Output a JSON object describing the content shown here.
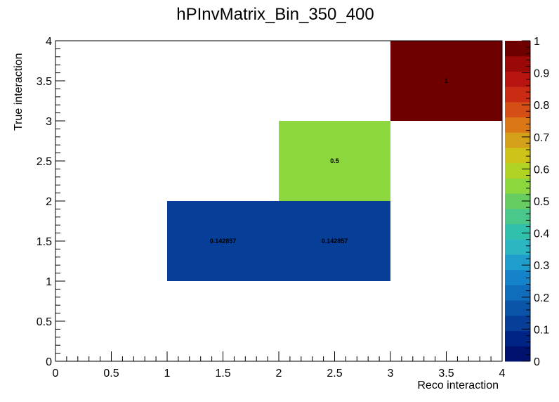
{
  "chart_data": {
    "type": "heatmap",
    "title": "hPInvMatrix_Bin_350_400",
    "xlabel": "Reco interaction",
    "ylabel": "True interaction",
    "xlim": [
      0,
      4
    ],
    "ylim": [
      0,
      4
    ],
    "zlim": [
      0,
      1
    ],
    "x_ticks": [
      "0",
      "0.5",
      "1",
      "1.5",
      "2",
      "2.5",
      "3",
      "3.5",
      "4"
    ],
    "y_ticks": [
      "0",
      "0.5",
      "1",
      "1.5",
      "2",
      "2.5",
      "3",
      "3.5",
      "4"
    ],
    "z_ticks": [
      "0",
      "0.1",
      "0.2",
      "0.3",
      "0.4",
      "0.5",
      "0.6",
      "0.7",
      "0.8",
      "0.9",
      "1"
    ],
    "x_bin_edges": [
      0,
      1,
      2,
      3,
      4
    ],
    "y_bin_edges": [
      1,
      2,
      3,
      4
    ],
    "cells": [
      {
        "x_bin": [
          1,
          2
        ],
        "y_bin": [
          1,
          2
        ],
        "value": 0.142857,
        "label": "0.142857",
        "color": "#063e98"
      },
      {
        "x_bin": [
          2,
          3
        ],
        "y_bin": [
          1,
          2
        ],
        "value": 0.142857,
        "label": "0.142857",
        "color": "#063e98"
      },
      {
        "x_bin": [
          2,
          3
        ],
        "y_bin": [
          2,
          3
        ],
        "value": 0.5,
        "label": "0.5",
        "color": "#8cd63e"
      },
      {
        "x_bin": [
          3,
          4
        ],
        "y_bin": [
          3,
          4
        ],
        "value": 1,
        "label": "1",
        "color": "#6e0000"
      }
    ],
    "palette": [
      "#00126e",
      "#002486",
      "#063e98",
      "#0b55a8",
      "#0f6dbb",
      "#1583c9",
      "#1f9dcc",
      "#2bb6c2",
      "#31c0ab",
      "#4ac78a",
      "#67cd62",
      "#8cd63e",
      "#b1d325",
      "#cec419",
      "#d4a019",
      "#db7716",
      "#d44f15",
      "#c92c12",
      "#b81410",
      "#9b0808",
      "#6e0000"
    ],
    "colorbar": true,
    "legend": "none",
    "grid": false
  }
}
